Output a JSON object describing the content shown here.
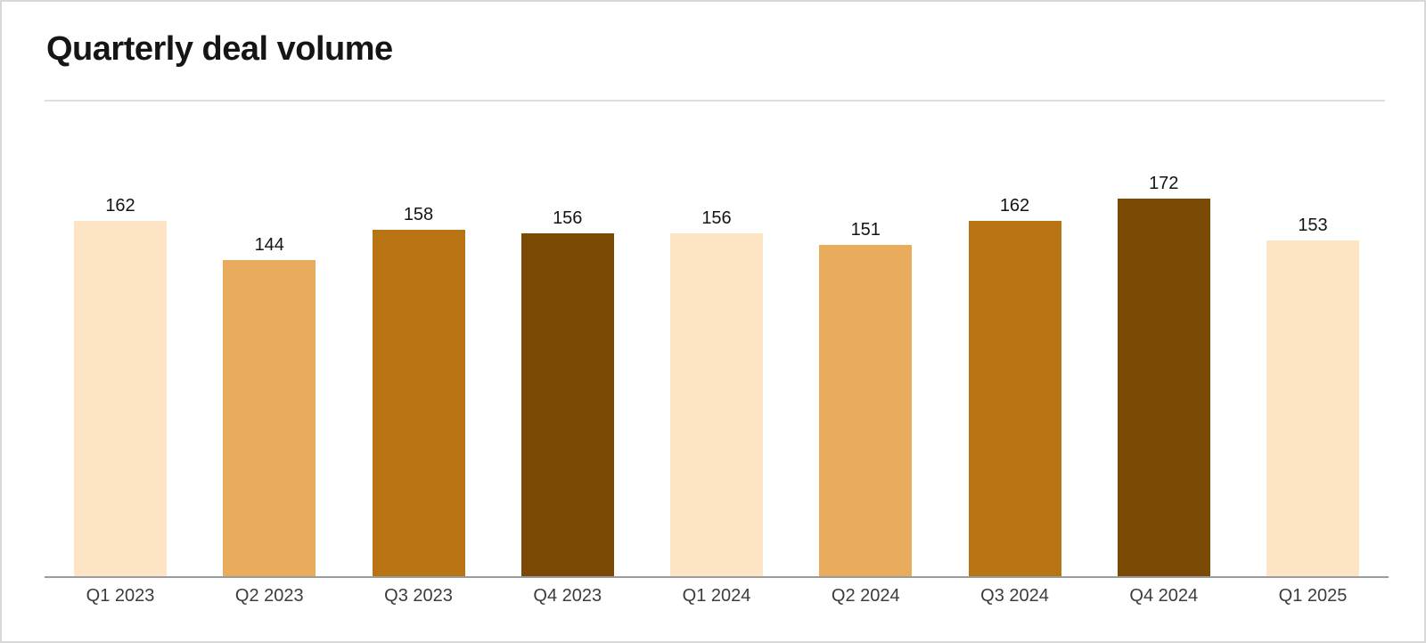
{
  "header": {
    "title": "Quarterly deal volume"
  },
  "chart_data": {
    "type": "bar",
    "title": "Quarterly deal volume",
    "categories": [
      "Q1 2023",
      "Q2 2023",
      "Q3 2023",
      "Q4 2023",
      "Q1 2024",
      "Q2 2024",
      "Q3 2024",
      "Q4 2024",
      "Q1 2025"
    ],
    "values": [
      162,
      144,
      158,
      156,
      156,
      151,
      162,
      172,
      153
    ],
    "bar_colors": [
      "#FCE4C4",
      "#E8AC5C",
      "#B87413",
      "#7A4A05",
      "#FCE4C4",
      "#E8AC5C",
      "#B87413",
      "#7A4A05",
      "#FCE4C4"
    ],
    "value_labels_shown": true,
    "xlabel": "",
    "ylabel": "",
    "ylim": [
      0,
      180
    ],
    "gridlines": false,
    "legend": "none",
    "y_axis_shown": false
  },
  "style": {
    "quarter_color_cycle": {
      "q1": "#FCE4C4",
      "q2": "#E8AC5C",
      "q3": "#B87413",
      "q4": "#7A4A05"
    },
    "axis_line_color": "#9B9B9B",
    "divider_color": "#DEDEDE",
    "tick_label_color": "#3C3C3C",
    "value_label_color": "#141414",
    "title_color": "#151515",
    "card_border_color": "#D8D8D8",
    "background": "#FFFFFF"
  }
}
